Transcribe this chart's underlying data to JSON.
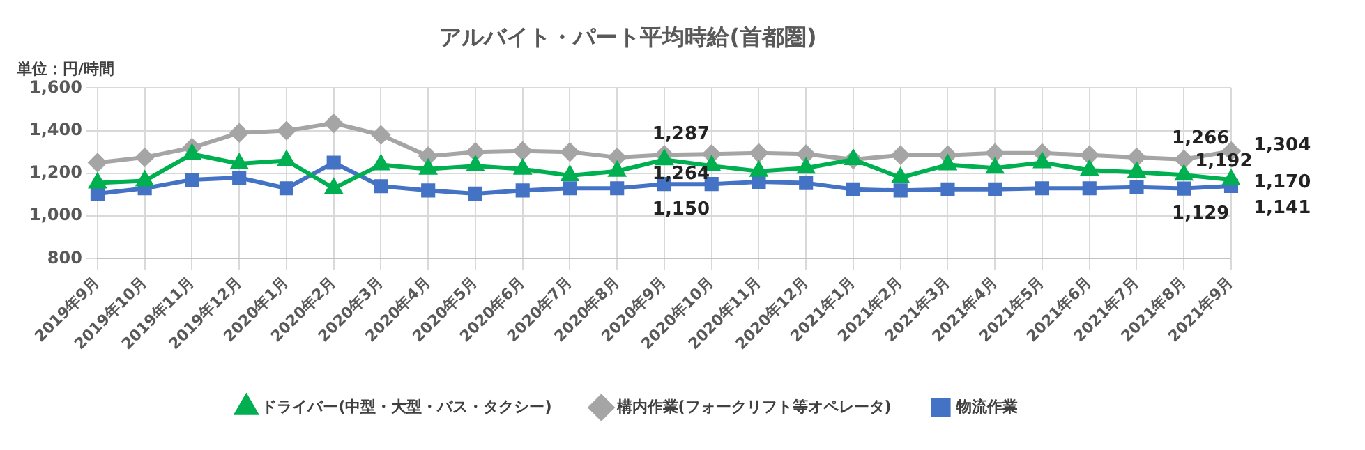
{
  "chart_data": {
    "type": "line",
    "title": "アルバイト・パート平均時給(首都圏)",
    "annotations": [
      "単位：円/時間"
    ],
    "categories": [
      "2019年9月",
      "2019年10月",
      "2019年11月",
      "2019年12月",
      "2020年1月",
      "2020年2月",
      "2020年3月",
      "2020年4月",
      "2020年5月",
      "2020年6月",
      "2020年7月",
      "2020年8月",
      "2020年9月",
      "2020年10月",
      "2020年11月",
      "2020年12月",
      "2021年1月",
      "2021年2月",
      "2021年3月",
      "2021年4月",
      "2021年5月",
      "2021年6月",
      "2021年7月",
      "2021年8月",
      "2021年9月"
    ],
    "series": [
      {
        "name": "ドライバー(中型・大型・バス・タクシー)",
        "color": "#00b050",
        "marker": "triangle",
        "values": [
          1155,
          1165,
          1290,
          1245,
          1260,
          1130,
          1240,
          1220,
          1235,
          1220,
          1190,
          1210,
          1264,
          1235,
          1210,
          1225,
          1265,
          1180,
          1240,
          1225,
          1250,
          1215,
          1205,
          1192,
          1170
        ],
        "value_labels": [
          null,
          null,
          null,
          null,
          null,
          null,
          null,
          null,
          null,
          null,
          null,
          null,
          "1,264",
          null,
          null,
          null,
          null,
          null,
          null,
          null,
          null,
          null,
          null,
          "1,192",
          "1,170"
        ]
      },
      {
        "name": "構内作業(フォークリフト等オペレータ)",
        "color": "#a5a5a5",
        "marker": "diamond",
        "values": [
          1250,
          1275,
          1320,
          1390,
          1400,
          1435,
          1380,
          1280,
          1300,
          1305,
          1300,
          1275,
          1287,
          1290,
          1295,
          1290,
          1265,
          1285,
          1285,
          1295,
          1295,
          1285,
          1275,
          1266,
          1304
        ],
        "value_labels": [
          null,
          null,
          null,
          null,
          null,
          null,
          null,
          null,
          null,
          null,
          null,
          null,
          "1,287",
          null,
          null,
          null,
          null,
          null,
          null,
          null,
          null,
          null,
          null,
          "1,266",
          "1,304"
        ]
      },
      {
        "name": "物流作業",
        "color": "#4472c4",
        "marker": "square",
        "values": [
          1105,
          1130,
          1170,
          1180,
          1130,
          1250,
          1140,
          1120,
          1105,
          1120,
          1130,
          1130,
          1150,
          1150,
          1160,
          1155,
          1125,
          1120,
          1125,
          1125,
          1130,
          1130,
          1135,
          1129,
          1141
        ],
        "value_labels": [
          null,
          null,
          null,
          null,
          null,
          null,
          null,
          null,
          null,
          null,
          null,
          null,
          "1,150",
          null,
          null,
          null,
          null,
          null,
          null,
          null,
          null,
          null,
          null,
          "1,129",
          "1,141"
        ]
      }
    ],
    "ylim": [
      800,
      1600
    ],
    "yticks": [
      {
        "value": 800,
        "label": "800"
      },
      {
        "value": 1000,
        "label": "1,000"
      },
      {
        "value": 1200,
        "label": "1,200"
      },
      {
        "value": 1400,
        "label": "1,400"
      },
      {
        "value": 1600,
        "label": "1,600"
      }
    ],
    "grid": true,
    "legend": "bottom",
    "line_style": "solid"
  }
}
